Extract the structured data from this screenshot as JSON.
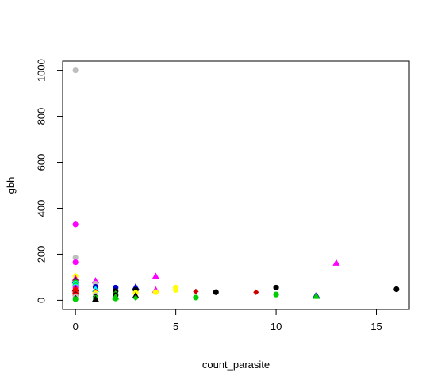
{
  "chart_data": {
    "type": "scatter",
    "title": "",
    "xlabel": "count_parasite",
    "ylabel": "gbh",
    "xlim": [
      -0.64,
      16.64
    ],
    "ylim": [
      -40,
      1040
    ],
    "x_ticks": [
      0,
      5,
      10,
      15
    ],
    "y_ticks": [
      0,
      200,
      400,
      600,
      800,
      1000
    ],
    "x_tick_labels": [
      "0",
      "5",
      "10",
      "15"
    ],
    "y_tick_labels": [
      "0",
      "200",
      "400",
      "600",
      "800",
      "1000"
    ],
    "grid": false,
    "legend": "none",
    "points": [
      {
        "x": 0,
        "y": 1000,
        "shape": "circle",
        "color": "#bebebe"
      },
      {
        "x": 0,
        "y": 330,
        "shape": "circle",
        "color": "#ff00ff"
      },
      {
        "x": 0,
        "y": 185,
        "shape": "circle",
        "color": "#bebebe"
      },
      {
        "x": 0,
        "y": 165,
        "shape": "circle",
        "color": "#ff00ff"
      },
      {
        "x": 0,
        "y": 105,
        "shape": "circle",
        "color": "#ffff00"
      },
      {
        "x": 0,
        "y": 95,
        "shape": "triangle",
        "color": "#ff00ff"
      },
      {
        "x": 0,
        "y": 90,
        "shape": "diamond",
        "color": "#cd0000"
      },
      {
        "x": 0,
        "y": 85,
        "shape": "triangle",
        "color": "#0000cd"
      },
      {
        "x": 0,
        "y": 78,
        "shape": "circle",
        "color": "#00cd00"
      },
      {
        "x": 0,
        "y": 72,
        "shape": "circle",
        "color": "#00ffff"
      },
      {
        "x": 0,
        "y": 65,
        "shape": "circle",
        "color": "#00cd00"
      },
      {
        "x": 0,
        "y": 60,
        "shape": "circle",
        "color": "#00ffff"
      },
      {
        "x": 0,
        "y": 55,
        "shape": "circle",
        "color": "#ff00ff"
      },
      {
        "x": 0,
        "y": 50,
        "shape": "triangle",
        "color": "#000000"
      },
      {
        "x": 0,
        "y": 45,
        "shape": "circle",
        "color": "#ff0000"
      },
      {
        "x": 0,
        "y": 38,
        "shape": "triangle",
        "color": "#cd0000"
      },
      {
        "x": 0,
        "y": 33,
        "shape": "circle",
        "color": "#ff0000"
      },
      {
        "x": 0,
        "y": 28,
        "shape": "diamond",
        "color": "#000000"
      },
      {
        "x": 0,
        "y": 22,
        "shape": "circle",
        "color": "#ff0000"
      },
      {
        "x": 0,
        "y": 16,
        "shape": "circle",
        "color": "#bebebe"
      },
      {
        "x": 0,
        "y": 10,
        "shape": "diamond",
        "color": "#000000"
      },
      {
        "x": 0,
        "y": 5,
        "shape": "circle",
        "color": "#00cd00"
      },
      {
        "x": 1,
        "y": 85,
        "shape": "triangle",
        "color": "#ff00ff"
      },
      {
        "x": 1,
        "y": 72,
        "shape": "circle",
        "color": "#bebebe"
      },
      {
        "x": 1,
        "y": 58,
        "shape": "circle",
        "color": "#0000cd"
      },
      {
        "x": 1,
        "y": 48,
        "shape": "triangle",
        "color": "#00ffff"
      },
      {
        "x": 1,
        "y": 38,
        "shape": "diamond",
        "color": "#cd0000"
      },
      {
        "x": 1,
        "y": 30,
        "shape": "circle",
        "color": "#ffff00"
      },
      {
        "x": 1,
        "y": 22,
        "shape": "circle",
        "color": "#bebebe"
      },
      {
        "x": 1,
        "y": 16,
        "shape": "diamond",
        "color": "#000000"
      },
      {
        "x": 1,
        "y": 10,
        "shape": "circle",
        "color": "#00cd00"
      },
      {
        "x": 1,
        "y": 5,
        "shape": "triangle",
        "color": "#000000"
      },
      {
        "x": 2,
        "y": 55,
        "shape": "circle",
        "color": "#0000cd"
      },
      {
        "x": 2,
        "y": 40,
        "shape": "circle",
        "color": "#000000"
      },
      {
        "x": 2,
        "y": 30,
        "shape": "diamond",
        "color": "#00cd00"
      },
      {
        "x": 2,
        "y": 22,
        "shape": "circle",
        "color": "#000000"
      },
      {
        "x": 2,
        "y": 15,
        "shape": "triangle",
        "color": "#00cd00"
      },
      {
        "x": 2,
        "y": 8,
        "shape": "circle",
        "color": "#00cd00"
      },
      {
        "x": 3,
        "y": 58,
        "shape": "triangle",
        "color": "#0000cd"
      },
      {
        "x": 3,
        "y": 45,
        "shape": "circle",
        "color": "#000000"
      },
      {
        "x": 3,
        "y": 32,
        "shape": "circle",
        "color": "#ffff00"
      },
      {
        "x": 3,
        "y": 20,
        "shape": "triangle",
        "color": "#000000"
      },
      {
        "x": 3,
        "y": 10,
        "shape": "diamond",
        "color": "#00cd00"
      },
      {
        "x": 4,
        "y": 105,
        "shape": "triangle",
        "color": "#ff00ff"
      },
      {
        "x": 4,
        "y": 45,
        "shape": "triangle",
        "color": "#ff00ff"
      },
      {
        "x": 4,
        "y": 35,
        "shape": "circle",
        "color": "#ffff00"
      },
      {
        "x": 5,
        "y": 55,
        "shape": "circle",
        "color": "#ffff00"
      },
      {
        "x": 5,
        "y": 45,
        "shape": "circle",
        "color": "#ffff00"
      },
      {
        "x": 6,
        "y": 38,
        "shape": "diamond",
        "color": "#cd0000"
      },
      {
        "x": 6,
        "y": 12,
        "shape": "circle",
        "color": "#00cd00"
      },
      {
        "x": 7,
        "y": 35,
        "shape": "circle",
        "color": "#000000"
      },
      {
        "x": 9,
        "y": 35,
        "shape": "diamond",
        "color": "#cd0000"
      },
      {
        "x": 10,
        "y": 55,
        "shape": "circle",
        "color": "#000000"
      },
      {
        "x": 10,
        "y": 25,
        "shape": "circle",
        "color": "#00cd00"
      },
      {
        "x": 12,
        "y": 22,
        "shape": "triangle",
        "color": "#0000cd"
      },
      {
        "x": 12,
        "y": 18,
        "shape": "triangle",
        "color": "#00cd00"
      },
      {
        "x": 13,
        "y": 162,
        "shape": "triangle",
        "color": "#ff00ff"
      },
      {
        "x": 16,
        "y": 48,
        "shape": "circle",
        "color": "#000000"
      }
    ]
  }
}
